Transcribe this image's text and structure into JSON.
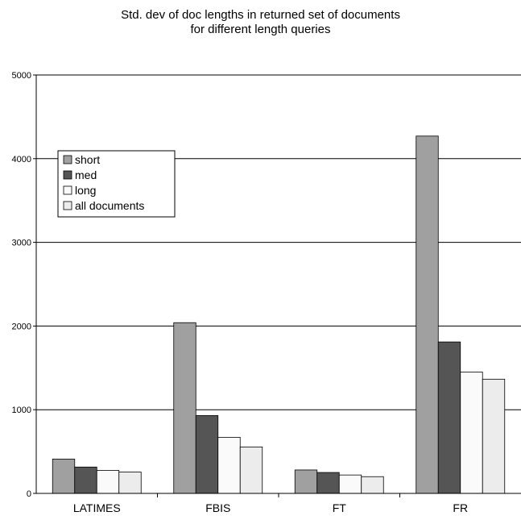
{
  "chart_data": {
    "type": "bar",
    "title_lines": [
      "Std. dev of doc lengths in returned set of documents",
      "for different length queries"
    ],
    "xlabel": "",
    "ylabel": "",
    "ylim": [
      0,
      5000
    ],
    "yticks": [
      0,
      1000,
      2000,
      3000,
      4000,
      5000
    ],
    "grid": true,
    "legend_position": "upper-left",
    "categories": [
      "LATIMES",
      "FBIS",
      "FT",
      "FR"
    ],
    "series": [
      {
        "name": "short",
        "color": "#a0a0a0",
        "values": [
          410,
          2040,
          280,
          4270
        ]
      },
      {
        "name": "med",
        "color": "#555555",
        "values": [
          315,
          930,
          250,
          1810
        ]
      },
      {
        "name": "long",
        "color": "#fafafa",
        "values": [
          275,
          670,
          220,
          1450
        ]
      },
      {
        "name": "all documents",
        "color": "#ececec",
        "values": [
          255,
          555,
          200,
          1365
        ]
      }
    ]
  }
}
